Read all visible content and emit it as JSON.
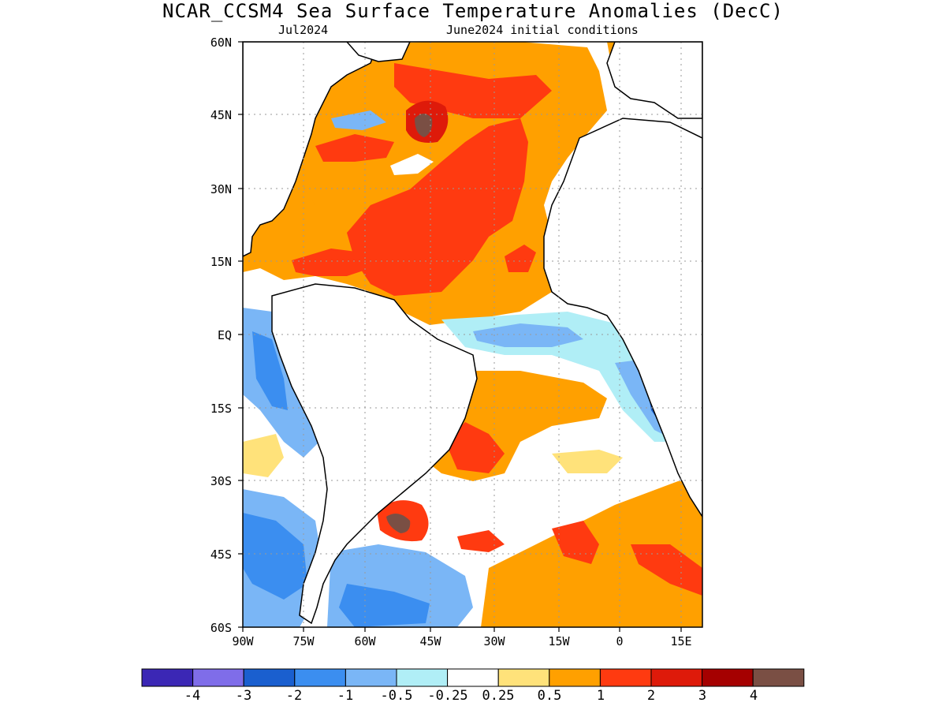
{
  "title": "NCAR_CCSM4 Sea Surface Temperature Anomalies (DecC)",
  "subtitle_left": "Jul2024",
  "subtitle_right": "June2024 initial conditions",
  "lat_labels": [
    "60N",
    "45N",
    "30N",
    "15N",
    "EQ",
    "15S",
    "30S",
    "45S",
    "60S"
  ],
  "lon_labels": [
    "90W",
    "75W",
    "60W",
    "45W",
    "30W",
    "15W",
    "0",
    "15E"
  ],
  "colorbar": {
    "colors": [
      "#3b27b5",
      "#7f6de9",
      "#1a5fcf",
      "#3b8ef0",
      "#7ab6f6",
      "#b0eef6",
      "#ffffff",
      "#ffe27a",
      "#ffa000",
      "#ff3a10",
      "#de1a0a",
      "#a50000",
      "#7a4f44"
    ],
    "tick_labels": [
      "-4",
      "-3",
      "-2",
      "-1",
      "-0.5",
      "-0.25",
      "0.25",
      "0.5",
      "1",
      "2",
      "3",
      "4"
    ]
  },
  "chart_data": {
    "type": "heatmap",
    "title": "NCAR_CCSM4 Sea Surface Temperature Anomalies (DecC)",
    "subtitle": "Jul2024 — June2024 initial conditions",
    "xlabel": "",
    "ylabel": "",
    "x_ticks": [
      "90W",
      "75W",
      "60W",
      "45W",
      "30W",
      "15W",
      "0",
      "15E"
    ],
    "y_ticks": [
      "60N",
      "45N",
      "30N",
      "15N",
      "EQ",
      "15S",
      "30S",
      "45S",
      "60S"
    ],
    "xlim": [
      -90,
      15
    ],
    "ylim": [
      -60,
      60
    ],
    "grid": true,
    "colorbar_levels": [
      -4,
      -3,
      -2,
      -1,
      -0.5,
      -0.25,
      0.25,
      0.5,
      1,
      2,
      3,
      4
    ],
    "units": "DecC"
  }
}
